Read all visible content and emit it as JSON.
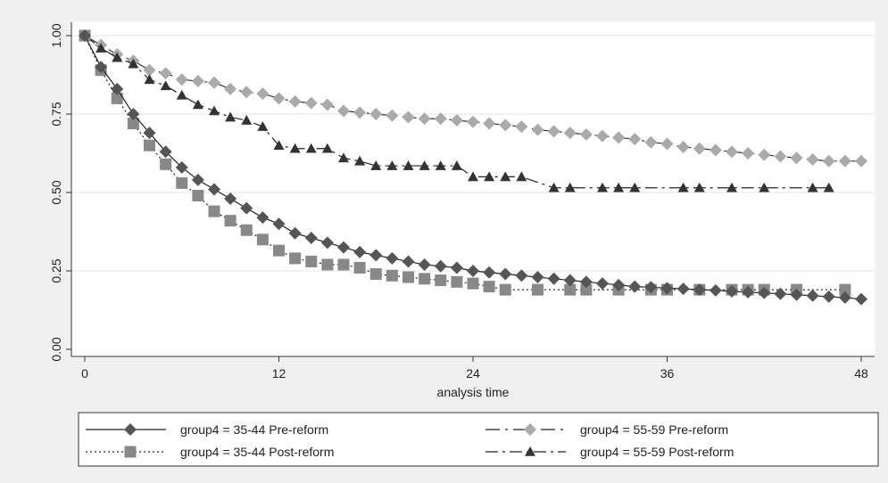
{
  "chart_data": {
    "type": "line",
    "xlabel": "analysis time",
    "ylabel": "",
    "xlim": [
      0,
      48
    ],
    "ylim": [
      0,
      1
    ],
    "xticks": [
      "0",
      "12",
      "24",
      "36",
      "48"
    ],
    "yticks": [
      "0.00",
      "0.25",
      "0.50",
      "0.75",
      "1.00"
    ],
    "grid": true,
    "legend_position": "bottom",
    "series": [
      {
        "name": "group4 = 35-44 Pre-reform",
        "marker": "diamond",
        "dash": "solid",
        "color": "#555555",
        "x": [
          0,
          1,
          2,
          3,
          4,
          5,
          6,
          7,
          8,
          9,
          10,
          11,
          12,
          13,
          14,
          15,
          16,
          17,
          18,
          19,
          20,
          21,
          22,
          23,
          24,
          25,
          26,
          27,
          28,
          29,
          30,
          31,
          32,
          33,
          34,
          35,
          36,
          37,
          38,
          39,
          40,
          41,
          42,
          43,
          44,
          45,
          46,
          47,
          48
        ],
        "y": [
          1.0,
          0.9,
          0.83,
          0.75,
          0.69,
          0.63,
          0.58,
          0.54,
          0.51,
          0.48,
          0.45,
          0.42,
          0.4,
          0.37,
          0.355,
          0.34,
          0.325,
          0.31,
          0.3,
          0.29,
          0.28,
          0.27,
          0.265,
          0.26,
          0.25,
          0.245,
          0.24,
          0.235,
          0.23,
          0.225,
          0.22,
          0.215,
          0.21,
          0.205,
          0.2,
          0.198,
          0.195,
          0.193,
          0.19,
          0.188,
          0.185,
          0.182,
          0.18,
          0.177,
          0.174,
          0.171,
          0.168,
          0.165,
          0.16
        ]
      },
      {
        "name": "group4 = 35-44 Post-reform",
        "marker": "square",
        "dash": "dotted",
        "color": "#888888",
        "x": [
          0,
          1,
          2,
          3,
          4,
          5,
          6,
          7,
          8,
          9,
          10,
          11,
          12,
          13,
          14,
          15,
          16,
          17,
          18,
          19,
          20,
          21,
          22,
          23,
          24,
          25,
          26,
          28,
          30,
          31,
          33,
          35,
          36,
          38,
          40,
          41,
          42,
          44,
          47
        ],
        "y": [
          1.0,
          0.89,
          0.8,
          0.72,
          0.65,
          0.59,
          0.53,
          0.49,
          0.44,
          0.41,
          0.38,
          0.35,
          0.315,
          0.29,
          0.28,
          0.27,
          0.27,
          0.26,
          0.24,
          0.235,
          0.23,
          0.225,
          0.22,
          0.215,
          0.21,
          0.2,
          0.19,
          0.19,
          0.19,
          0.19,
          0.19,
          0.19,
          0.19,
          0.19,
          0.19,
          0.19,
          0.19,
          0.19,
          0.19
        ]
      },
      {
        "name": "group4 = 55-59 Pre-reform",
        "marker": "diamond",
        "dash": "longdash-dot",
        "color": "#aaaaaa",
        "x": [
          0,
          1,
          2,
          3,
          4,
          5,
          6,
          7,
          8,
          9,
          10,
          11,
          12,
          13,
          14,
          15,
          16,
          17,
          18,
          19,
          20,
          21,
          22,
          23,
          24,
          25,
          26,
          27,
          28,
          29,
          30,
          31,
          32,
          33,
          34,
          35,
          36,
          37,
          38,
          39,
          40,
          41,
          42,
          43,
          44,
          45,
          46,
          47,
          48
        ],
        "y": [
          1.0,
          0.97,
          0.94,
          0.92,
          0.89,
          0.88,
          0.86,
          0.855,
          0.85,
          0.83,
          0.82,
          0.815,
          0.8,
          0.79,
          0.785,
          0.78,
          0.76,
          0.755,
          0.75,
          0.745,
          0.74,
          0.735,
          0.735,
          0.73,
          0.725,
          0.72,
          0.715,
          0.71,
          0.7,
          0.695,
          0.69,
          0.685,
          0.68,
          0.675,
          0.67,
          0.66,
          0.655,
          0.645,
          0.64,
          0.635,
          0.63,
          0.625,
          0.62,
          0.615,
          0.61,
          0.605,
          0.6,
          0.6,
          0.6
        ]
      },
      {
        "name": "group4 = 55-59 Post-reform",
        "marker": "triangle",
        "dash": "dashdot",
        "color": "#333333",
        "x": [
          0,
          1,
          2,
          3,
          4,
          5,
          6,
          7,
          8,
          9,
          10,
          11,
          12,
          13,
          14,
          15,
          16,
          17,
          18,
          19,
          20,
          21,
          22,
          23,
          24,
          25,
          26,
          27,
          29,
          30,
          32,
          33,
          34,
          37,
          38,
          40,
          42,
          45,
          46
        ],
        "y": [
          1.0,
          0.96,
          0.93,
          0.91,
          0.86,
          0.84,
          0.81,
          0.78,
          0.76,
          0.74,
          0.73,
          0.71,
          0.65,
          0.64,
          0.64,
          0.64,
          0.61,
          0.6,
          0.585,
          0.585,
          0.585,
          0.585,
          0.585,
          0.585,
          0.55,
          0.55,
          0.55,
          0.55,
          0.515,
          0.515,
          0.515,
          0.515,
          0.515,
          0.515,
          0.515,
          0.515,
          0.515,
          0.515,
          0.515
        ]
      }
    ]
  }
}
